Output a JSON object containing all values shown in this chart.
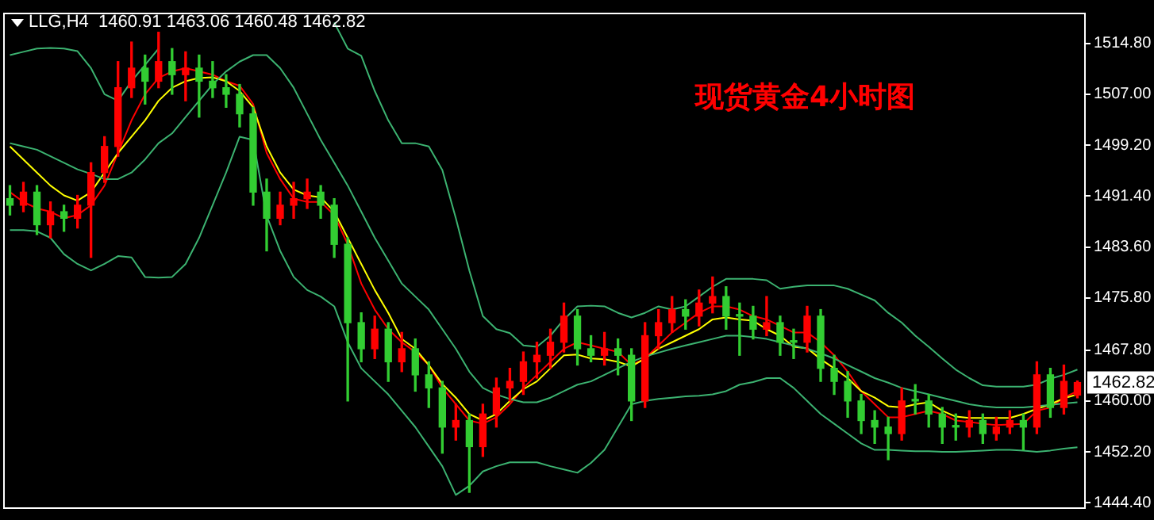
{
  "chart_data": {
    "type": "candlestick",
    "title": "现货黄金4小时图",
    "tick_labels": "y",
    "annotations": [
      "LLG,H4  1460.91 1463.06 1460.48 1462.82",
      "1462.82"
    ],
    "categories": [
      null,
      null,
      null,
      null,
      null,
      null,
      null,
      null,
      null,
      null,
      null,
      null,
      null,
      null,
      null,
      null,
      null,
      null,
      null,
      null,
      null,
      null,
      null,
      null,
      null,
      null,
      null,
      null,
      null,
      null,
      null,
      null,
      null,
      null,
      null,
      null,
      null,
      null,
      null,
      null,
      null,
      null,
      null,
      null,
      null,
      null,
      null,
      null,
      null,
      null,
      null,
      null,
      null,
      null,
      null,
      null,
      null,
      null,
      null,
      null,
      null,
      null,
      null,
      null,
      null,
      null,
      null,
      null,
      null,
      null,
      null,
      null,
      null,
      null,
      null,
      null,
      null,
      null,
      null,
      null
    ],
    "ylim": [
      1443.7,
      1519.5
    ],
    "yticks": [
      {
        "value": 1444.4,
        "label": "1444.40"
      },
      {
        "value": 1452.2,
        "label": "1452.20"
      },
      {
        "value": 1460,
        "label": "1460.00"
      },
      {
        "value": 1467.8,
        "label": "1467.80"
      },
      {
        "value": 1475.8,
        "label": "1475.80"
      },
      {
        "value": 1483.6,
        "label": "1483.60"
      },
      {
        "value": 1491.4,
        "label": "1491.40"
      },
      {
        "value": 1499.2,
        "label": "1499.20"
      },
      {
        "value": 1507,
        "label": "1507.00"
      },
      {
        "value": 1514.8,
        "label": "1514.80"
      }
    ],
    "ohlc": [
      [
        1491,
        1493,
        1488.5,
        1490
      ],
      [
        1490,
        1493.5,
        1489,
        1492
      ],
      [
        1492,
        1493,
        1485.5,
        1487
      ],
      [
        1487,
        1490.5,
        1485,
        1489
      ],
      [
        1489,
        1490,
        1486,
        1488
      ],
      [
        1488,
        1491.5,
        1486.5,
        1490
      ],
      [
        1490,
        1496.5,
        1482,
        1495
      ],
      [
        1495,
        1500.5,
        1493.5,
        1499
      ],
      [
        1499,
        1512,
        1497.5,
        1508
      ],
      [
        1508,
        1515,
        1506.5,
        1511
      ],
      [
        1511,
        1513,
        1505.5,
        1509
      ],
      [
        1509,
        1516.5,
        1508,
        1512
      ],
      [
        1512,
        1514,
        1507,
        1510
      ],
      [
        1510,
        1513.5,
        1506,
        1511
      ],
      [
        1511,
        1513,
        1503.5,
        1509
      ],
      [
        1509,
        1512,
        1506.5,
        1508
      ],
      [
        1508,
        1510,
        1505,
        1507
      ],
      [
        1507,
        1508.5,
        1502,
        1504
      ],
      [
        1504,
        1505,
        1490,
        1492
      ],
      [
        1492,
        1494,
        1483,
        1488
      ],
      [
        1488,
        1492,
        1487,
        1490
      ],
      [
        1490,
        1493.5,
        1488,
        1491
      ],
      [
        1491,
        1494,
        1489.5,
        1492
      ],
      [
        1492,
        1493,
        1488,
        1490
      ],
      [
        1490,
        1491,
        1482,
        1484
      ],
      [
        1484,
        1485,
        1460,
        1472
      ],
      [
        1472,
        1473.5,
        1466,
        1468
      ],
      [
        1468,
        1473,
        1466.5,
        1471
      ],
      [
        1471,
        1472,
        1463,
        1466
      ],
      [
        1466,
        1470.5,
        1464.5,
        1468
      ],
      [
        1468,
        1469.5,
        1461.5,
        1464
      ],
      [
        1464,
        1466,
        1459,
        1462
      ],
      [
        1462,
        1463,
        1452,
        1456
      ],
      [
        1456,
        1459.5,
        1454,
        1457
      ],
      [
        1457,
        1458,
        1446,
        1453
      ],
      [
        1453,
        1459.5,
        1451.5,
        1458
      ],
      [
        1458,
        1463.5,
        1456,
        1462
      ],
      [
        1462,
        1465,
        1460,
        1463
      ],
      [
        1463,
        1467.5,
        1461,
        1466
      ],
      [
        1466,
        1469,
        1463.5,
        1467
      ],
      [
        1467,
        1471,
        1465,
        1469
      ],
      [
        1469,
        1475,
        1467.5,
        1473
      ],
      [
        1473,
        1474,
        1465.5,
        1468
      ],
      [
        1468,
        1470,
        1466,
        1467
      ],
      [
        1467,
        1470.5,
        1465.5,
        1468
      ],
      [
        1468,
        1469.5,
        1464,
        1467
      ],
      [
        1467,
        1468,
        1457,
        1460
      ],
      [
        1460,
        1472,
        1459,
        1470
      ],
      [
        1470,
        1474,
        1468,
        1472
      ],
      [
        1472,
        1476,
        1470.5,
        1474
      ],
      [
        1474,
        1475.5,
        1471,
        1473
      ],
      [
        1473,
        1477,
        1471.5,
        1475
      ],
      [
        1475,
        1479,
        1473.5,
        1476
      ],
      [
        1476,
        1477.5,
        1471,
        1473
      ],
      [
        1473,
        1475,
        1467,
        1473
      ],
      [
        1473,
        1474.5,
        1469.5,
        1471
      ],
      [
        1471,
        1476,
        1470,
        1472
      ],
      [
        1472,
        1473,
        1467,
        1469
      ],
      [
        1469,
        1471,
        1466.5,
        1469
      ],
      [
        1469,
        1474.5,
        1467.5,
        1473
      ],
      [
        1473,
        1474,
        1463,
        1465
      ],
      [
        1465,
        1467,
        1461,
        1463
      ],
      [
        1463,
        1464.5,
        1457.5,
        1460
      ],
      [
        1460,
        1461,
        1455,
        1457
      ],
      [
        1457,
        1458.5,
        1453.5,
        1456
      ],
      [
        1456,
        1457.5,
        1451,
        1455
      ],
      [
        1455,
        1462,
        1454,
        1460
      ],
      [
        1460,
        1462.5,
        1458,
        1460
      ],
      [
        1460,
        1461,
        1456,
        1458
      ],
      [
        1458,
        1459,
        1453.5,
        1456
      ],
      [
        1456,
        1458,
        1454,
        1456
      ],
      [
        1456,
        1458.5,
        1454.5,
        1457
      ],
      [
        1457,
        1458,
        1453.5,
        1455
      ],
      [
        1455,
        1457.5,
        1454,
        1456
      ],
      [
        1456,
        1458.5,
        1455,
        1457
      ],
      [
        1457,
        1458,
        1452.5,
        1456
      ],
      [
        1456,
        1466,
        1455,
        1464
      ],
      [
        1464,
        1465,
        1457.5,
        1459
      ],
      [
        1459,
        1465.5,
        1458,
        1463
      ],
      [
        1460.91,
        1463.06,
        1460.48,
        1462.82
      ]
    ],
    "colors": [
      "#32cd32",
      "#ff0000",
      "#32cd32",
      "#ff0000",
      "#32cd32",
      "#ff0000",
      "#ff0000",
      "#ff0000",
      "#ff0000",
      "#ff0000",
      "#32cd32",
      "#ff0000",
      "#32cd32",
      "#ff0000",
      "#32cd32",
      "#32cd32",
      "#32cd32",
      "#32cd32",
      "#32cd32",
      "#32cd32",
      "#ff0000",
      "#ff0000",
      "#ff0000",
      "#32cd32",
      "#32cd32",
      "#32cd32",
      "#32cd32",
      "#ff0000",
      "#32cd32",
      "#ff0000",
      "#32cd32",
      "#32cd32",
      "#32cd32",
      "#ff0000",
      "#32cd32",
      "#ff0000",
      "#ff0000",
      "#ff0000",
      "#ff0000",
      "#ff0000",
      "#ff0000",
      "#ff0000",
      "#32cd32",
      "#32cd32",
      "#ff0000",
      "#32cd32",
      "#32cd32",
      "#ff0000",
      "#ff0000",
      "#ff0000",
      "#32cd32",
      "#ff0000",
      "#ff0000",
      "#32cd32",
      "#32cd32",
      "#32cd32",
      "#ff0000",
      "#32cd32",
      "#32cd32",
      "#ff0000",
      "#32cd32",
      "#32cd32",
      "#32cd32",
      "#32cd32",
      "#32cd32",
      "#32cd32",
      "#ff0000",
      "#32cd32",
      "#32cd32",
      "#32cd32",
      "#32cd32",
      "#ff0000",
      "#32cd32",
      "#ff0000",
      "#ff0000",
      "#32cd32",
      "#ff0000",
      "#32cd32",
      "#ff0000",
      "#ff0000"
    ],
    "series": [
      {
        "type": "line",
        "color": "#3cb371",
        "values": [
          1513,
          1513.5,
          1514,
          1514.1,
          1514,
          1513.6,
          1511,
          1507,
          1506,
          1509,
          1511.5,
          1514,
          null,
          null,
          null,
          null,
          null,
          null,
          null,
          null,
          null,
          null,
          null,
          null,
          1518,
          1514,
          1512.9,
          1507.5,
          1503,
          1499.5,
          1499.5,
          1499,
          1495.4,
          1488,
          1480,
          1473,
          1471,
          1470.4,
          1468.5,
          1468.3,
          1470,
          1472.5,
          1474.5,
          1474.6,
          1474.5,
          1473.5,
          1472.8,
          1473.5,
          1474.5,
          1474,
          1474.5,
          1476,
          1477.5,
          1478.7,
          1478.7,
          1478.7,
          1478.5,
          1477.2,
          1477.5,
          1477.7,
          1477.7,
          1477.7,
          1477.2,
          1476.3,
          1475.4,
          1473.5,
          1472,
          1470,
          1468.3,
          1466.5,
          1464.8,
          1463.5,
          1462.4,
          1462.2,
          1462.2,
          1462.2,
          1462.5,
          1463.4,
          1464,
          1464.8
        ]
      },
      {
        "type": "line",
        "color": "#3cb371",
        "values": [
          1499.5,
          1499,
          1498.5,
          1497.5,
          1496.5,
          1495.5,
          1494.8,
          1494,
          1494,
          1495,
          1497,
          1499.5,
          1501,
          1503.5,
          1506,
          1508.5,
          1510.5,
          1512,
          1513,
          1513,
          1511,
          1508,
          1504,
          1500,
          1496.5,
          1493,
          1489,
          1485,
          1481.5,
          1478,
          1476,
          1474,
          1471,
          1468,
          1464.5,
          1462,
          1461,
          1460.3,
          1459.8,
          1459.8,
          1460.5,
          1461.5,
          1462.5,
          1463,
          1464,
          1465,
          1466,
          1466.8,
          1467.4,
          1468,
          1468.5,
          1469,
          1469.5,
          1470,
          1470,
          1469.8,
          1469.5,
          1469,
          1468.5,
          1468,
          1467.3,
          1466.5,
          1465.5,
          1464.5,
          1463.5,
          1462.8,
          1462,
          1461.5,
          1461,
          1460.5,
          1460,
          1459.5,
          1459.2,
          1459,
          1459,
          1459,
          1459.2,
          1459.4,
          1459.6,
          1459.8
        ]
      },
      {
        "type": "line",
        "color": "#3cb371",
        "values": [
          1486.2,
          1486.2,
          1486,
          1485,
          1482.5,
          1481,
          1480,
          1481,
          1482.2,
          1482,
          1479,
          1478.9,
          1479,
          1481,
          1485,
          1490,
          1495,
          1500.5,
          1500,
          1488.4,
          1483,
          1479,
          1477,
          1476,
          1474.5,
          1469,
          1465,
          1463,
          1461,
          1458.5,
          1456,
          1453,
          1450,
          1445.6,
          1447,
          1449.2,
          1450,
          1450.6,
          1450.6,
          1450.6,
          1450,
          1449.5,
          1449,
          1450.5,
          1452.5,
          1456,
          1459.5,
          1460,
          1460.3,
          1460.5,
          1460.7,
          1460.8,
          1461,
          1461.5,
          1462.5,
          1462.9,
          1463.5,
          1463.5,
          1462,
          1460,
          1458,
          1456.5,
          1455,
          1453.5,
          1452.5,
          1452.5,
          1452.4,
          1452.3,
          1452.3,
          1452.2,
          1452.2,
          1452.3,
          1452.4,
          1452.5,
          1452.5,
          1452.4,
          1452.2,
          1452.4,
          1452.7,
          1452.9
        ]
      },
      {
        "type": "line",
        "color": "#ffff00",
        "values": [
          1499,
          1497,
          1495,
          1493,
          1491.5,
          1490.7,
          1492,
          1495,
          1498,
          1500.5,
          1503,
          1506,
          1508,
          1509,
          1509.5,
          1509.6,
          1509,
          1507.5,
          1505,
          1499,
          1495,
          1492.4,
          1491.5,
          1491.2,
          1489,
          1485,
          1481,
          1477,
          1473.5,
          1469.5,
          1468,
          1465.5,
          1462.6,
          1460.5,
          1458,
          1457,
          1458,
          1460,
          1461.8,
          1463,
          1465,
          1467,
          1467.1,
          1466.5,
          1466.4,
          1466,
          1465.3,
          1466.5,
          1468,
          1469,
          1470,
          1471,
          1472.5,
          1472.8,
          1472.5,
          1472.3,
          1471,
          1470,
          1468.3,
          1468.1,
          1466.4,
          1465,
          1463.5,
          1461.5,
          1460.5,
          1459.2,
          1459,
          1459.5,
          1459.8,
          1458.5,
          1457.6,
          1457.4,
          1457.4,
          1457.4,
          1457.4,
          1458,
          1458.8,
          1459.5,
          1460.4,
          1461
        ]
      },
      {
        "type": "line",
        "color": "#ff0000",
        "values": [
          1492,
          1490.5,
          1489.5,
          1489,
          1488,
          1488.5,
          1490,
          1493,
          1498,
          1503,
          1507,
          1509.5,
          1510.5,
          1511,
          1510.5,
          1510,
          1509,
          1508.3,
          1505.5,
          1498,
          1494,
          1491,
          1490.5,
          1490.5,
          1488.5,
          1484,
          1478,
          1474,
          1471,
          1469,
          1467.5,
          1465.5,
          1462,
          1459.5,
          1457,
          1456.5,
          1457.5,
          1459.5,
          1462,
          1464,
          1466,
          1468,
          1469,
          1468.5,
          1468,
          1467.5,
          1465.5,
          1466.5,
          1468.5,
          1470.5,
          1472,
          1473.5,
          1474.5,
          1474.5,
          1474,
          1473,
          1472.5,
          1471.5,
          1470.5,
          1470.5,
          1469,
          1467,
          1464.5,
          1461.5,
          1459.5,
          1457.5,
          1457.5,
          1458,
          1458.5,
          1458,
          1457,
          1456.8,
          1456.5,
          1456.3,
          1456.4,
          1456.5,
          1458.5,
          1459,
          1460.5,
          1461.5
        ]
      }
    ]
  }
}
